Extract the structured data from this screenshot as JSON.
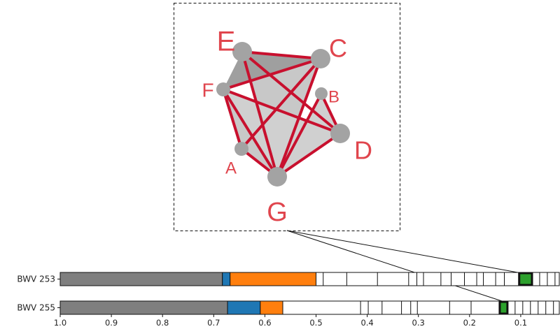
{
  "network": {
    "node_fill": "#a3a3a3",
    "edge_color": "#c8102e",
    "face_color": "#c8c8c8",
    "face_dark": "#9f9f9f",
    "label_color": "#e0454d",
    "nodes": [
      {
        "id": "E",
        "label": "E"
      },
      {
        "id": "C",
        "label": "C"
      },
      {
        "id": "F",
        "label": "F"
      },
      {
        "id": "B",
        "label": "B"
      },
      {
        "id": "D",
        "label": "D"
      },
      {
        "id": "A",
        "label": "A"
      },
      {
        "id": "G",
        "label": "G"
      }
    ]
  },
  "chart": {
    "x_ticks": [
      "1.0",
      "0.9",
      "0.8",
      "0.7",
      "0.6",
      "0.5",
      "0.4",
      "0.3",
      "0.2",
      "0.1"
    ],
    "xlim": [
      1.0,
      0.0
    ],
    "rows": [
      {
        "label": "BWV 253",
        "segments": [
          {
            "start": 1.0,
            "end": 0.683,
            "color": "#7f7f7f"
          },
          {
            "start": 0.683,
            "end": 0.668,
            "color": "#1f77b4"
          },
          {
            "start": 0.668,
            "end": 0.5,
            "color": "#ff7f0e"
          }
        ],
        "dividers": [
          0.486,
          0.44,
          0.38,
          0.319,
          0.303,
          0.29,
          0.256,
          0.236,
          0.21,
          0.186,
          0.173,
          0.149,
          0.132
        ],
        "highlight": {
          "start": 0.103,
          "end": 0.078,
          "color": "#2ca02c"
        },
        "tail_dividers": [
          0.063,
          0.048,
          0.033
        ]
      },
      {
        "label": "BWV 255",
        "segments": [
          {
            "start": 1.0,
            "end": 0.673,
            "color": "#7f7f7f"
          },
          {
            "start": 0.673,
            "end": 0.609,
            "color": "#1f77b4"
          },
          {
            "start": 0.609,
            "end": 0.565,
            "color": "#ff7f0e"
          }
        ],
        "dividers": [
          0.413,
          0.398,
          0.371,
          0.333,
          0.315,
          0.302,
          0.239,
          0.197
        ],
        "highlight": {
          "start": 0.141,
          "end": 0.126,
          "color": "#2ca02c"
        },
        "tail_dividers": [
          0.111,
          0.096,
          0.081,
          0.066,
          0.051,
          0.036,
          0.021
        ]
      }
    ]
  }
}
